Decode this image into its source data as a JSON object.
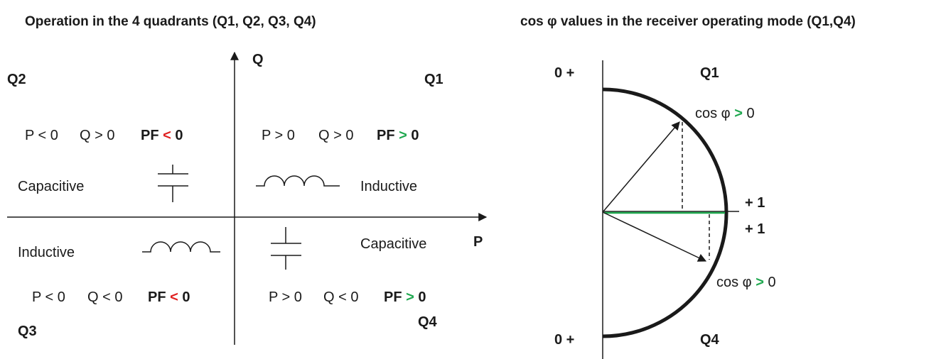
{
  "left": {
    "title": "Operation in the 4 quadrants (Q1, Q2, Q3, Q4)",
    "axis_q": "Q",
    "axis_p": "P",
    "quadrants": [
      {
        "name": "Q1",
        "p": "P > 0",
        "q": "Q > 0",
        "pf": "PF",
        "sign": ">",
        "zero": "0",
        "load": "Inductive"
      },
      {
        "name": "Q2",
        "p": "P < 0",
        "q": "Q > 0",
        "pf": "PF",
        "sign": "<",
        "zero": "0",
        "load": "Capacitive"
      },
      {
        "name": "Q3",
        "p": "P < 0",
        "q": "Q < 0",
        "pf": "PF",
        "sign": "<",
        "zero": "0",
        "load": "Inductive"
      },
      {
        "name": "Q4",
        "p": "P > 0",
        "q": "Q < 0",
        "pf": "PF",
        "sign": ">",
        "zero": "0",
        "load": "Capacitive"
      }
    ]
  },
  "right": {
    "title": "cos φ values in the receiver operating mode (Q1,Q4)",
    "top_zero": "0 +",
    "bottom_zero": "0 +",
    "q1": "Q1",
    "q4": "Q4",
    "one_top": "+ 1",
    "one_bottom": "+ 1",
    "upper": {
      "cos": "cos φ",
      "sign": ">",
      "zero": "0"
    },
    "lower": {
      "cos": "cos φ",
      "sign": ">",
      "zero": "0"
    }
  }
}
